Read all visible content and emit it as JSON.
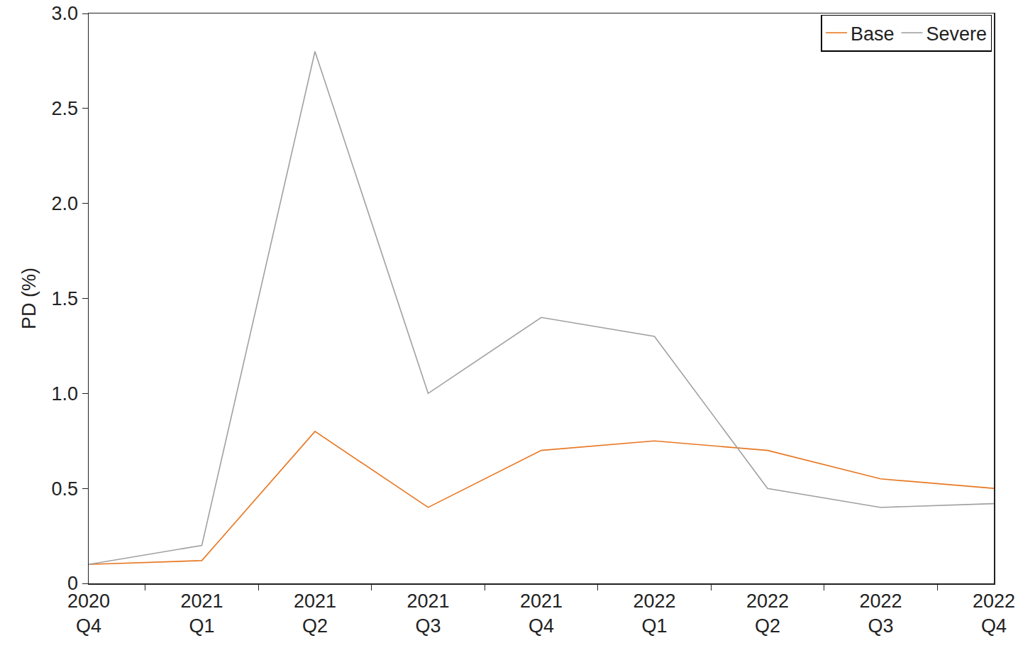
{
  "chart_data": {
    "type": "line",
    "y_label": "PD (%)",
    "categories": [
      "2020\nQ4",
      "2021\nQ1",
      "2021\nQ2",
      "2021\nQ3",
      "2021\nQ4",
      "2022\nQ1",
      "2022\nQ2",
      "2022\nQ3",
      "2022\nQ4"
    ],
    "series": [
      {
        "name": "Base",
        "color": "#e87722",
        "values": [
          0.1,
          0.12,
          0.8,
          0.4,
          0.7,
          0.75,
          0.7,
          0.55,
          0.5
        ]
      },
      {
        "name": "Severe",
        "color": "#a0a0a0",
        "values": [
          0.1,
          0.2,
          2.8,
          1.0,
          1.4,
          1.3,
          0.5,
          0.4,
          0.42
        ]
      }
    ],
    "ylim": [
      0,
      3
    ],
    "yticks": [
      0,
      0.5,
      {
        "value": 1,
        "label": "1.0"
      },
      1.5,
      {
        "value": 2,
        "label": "2.0"
      },
      2.5,
      {
        "value": 3,
        "label": "3.0"
      }
    ],
    "grid": false,
    "legend": "top right"
  }
}
